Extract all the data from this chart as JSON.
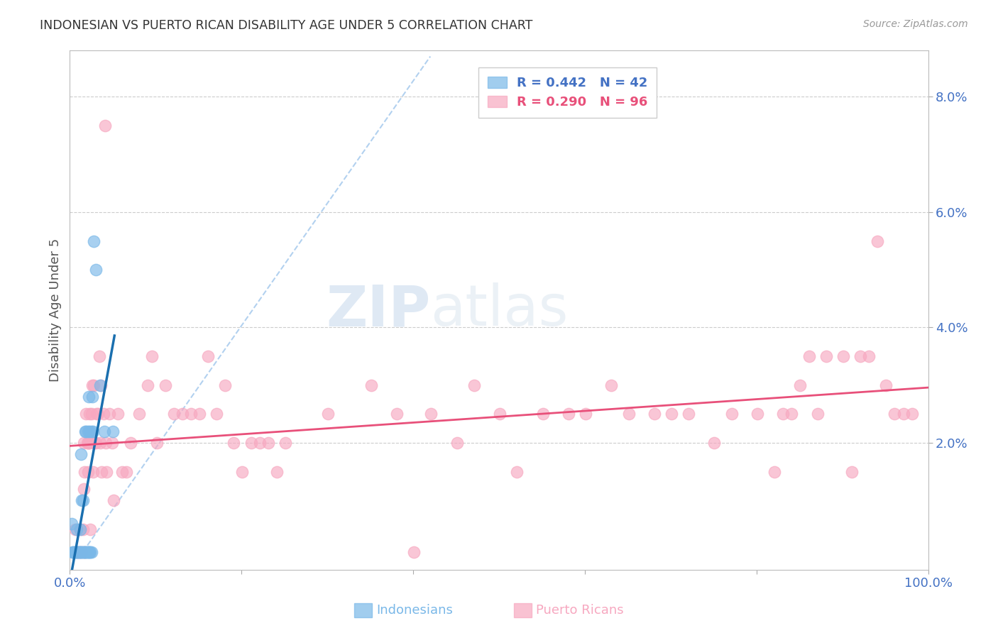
{
  "title": "INDONESIAN VS PUERTO RICAN DISABILITY AGE UNDER 5 CORRELATION CHART",
  "source": "Source: ZipAtlas.com",
  "ylabel": "Disability Age Under 5",
  "xlim": [
    0.0,
    1.0
  ],
  "ylim": [
    -0.002,
    0.088
  ],
  "y_ticks": [
    0.02,
    0.04,
    0.06,
    0.08
  ],
  "y_tick_labels": [
    "2.0%",
    "4.0%",
    "6.0%",
    "8.0%"
  ],
  "x_ticks": [
    0.0,
    1.0
  ],
  "x_tick_labels": [
    "0.0%",
    "100.0%"
  ],
  "legend_bottom": [
    "Indonesians",
    "Puerto Ricans"
  ],
  "legend_bottom_colors": [
    "#7ab8e8",
    "#f7a8c0"
  ],
  "background_color": "#ffffff",
  "grid_color": "#cccccc",
  "title_color": "#333333",
  "axis_label_color": "#4472c4",
  "indonesian_color": "#7ab8e8",
  "puerto_rican_color": "#f7a8c0",
  "indonesian_line_color": "#1a6faf",
  "puerto_rican_line_color": "#e8507a",
  "dashed_line_color": "#aaccee",
  "indonesian_points": [
    [
      0.002,
      0.006
    ],
    [
      0.003,
      0.001
    ],
    [
      0.004,
      0.001
    ],
    [
      0.005,
      0.001
    ],
    [
      0.006,
      0.001
    ],
    [
      0.007,
      0.001
    ],
    [
      0.008,
      0.001
    ],
    [
      0.008,
      0.005
    ],
    [
      0.009,
      0.001
    ],
    [
      0.01,
      0.001
    ],
    [
      0.011,
      0.001
    ],
    [
      0.012,
      0.001
    ],
    [
      0.012,
      0.005
    ],
    [
      0.013,
      0.001
    ],
    [
      0.013,
      0.018
    ],
    [
      0.014,
      0.001
    ],
    [
      0.014,
      0.01
    ],
    [
      0.015,
      0.001
    ],
    [
      0.015,
      0.01
    ],
    [
      0.016,
      0.001
    ],
    [
      0.017,
      0.001
    ],
    [
      0.018,
      0.001
    ],
    [
      0.018,
      0.022
    ],
    [
      0.019,
      0.001
    ],
    [
      0.019,
      0.022
    ],
    [
      0.02,
      0.001
    ],
    [
      0.021,
      0.001
    ],
    [
      0.021,
      0.022
    ],
    [
      0.022,
      0.001
    ],
    [
      0.022,
      0.028
    ],
    [
      0.023,
      0.001
    ],
    [
      0.023,
      0.022
    ],
    [
      0.024,
      0.001
    ],
    [
      0.025,
      0.001
    ],
    [
      0.025,
      0.022
    ],
    [
      0.026,
      0.028
    ],
    [
      0.027,
      0.022
    ],
    [
      0.028,
      0.055
    ],
    [
      0.03,
      0.05
    ],
    [
      0.035,
      0.03
    ],
    [
      0.04,
      0.022
    ],
    [
      0.05,
      0.022
    ]
  ],
  "puerto_rican_points": [
    [
      0.006,
      0.005
    ],
    [
      0.009,
      0.001
    ],
    [
      0.01,
      0.001
    ],
    [
      0.012,
      0.005
    ],
    [
      0.014,
      0.001
    ],
    [
      0.015,
      0.005
    ],
    [
      0.016,
      0.012
    ],
    [
      0.016,
      0.02
    ],
    [
      0.017,
      0.015
    ],
    [
      0.018,
      0.001
    ],
    [
      0.019,
      0.025
    ],
    [
      0.02,
      0.02
    ],
    [
      0.021,
      0.015
    ],
    [
      0.021,
      0.02
    ],
    [
      0.022,
      0.02
    ],
    [
      0.023,
      0.025
    ],
    [
      0.023,
      0.02
    ],
    [
      0.024,
      0.005
    ],
    [
      0.025,
      0.025
    ],
    [
      0.026,
      0.03
    ],
    [
      0.027,
      0.015
    ],
    [
      0.028,
      0.03
    ],
    [
      0.029,
      0.02
    ],
    [
      0.03,
      0.02
    ],
    [
      0.031,
      0.025
    ],
    [
      0.033,
      0.025
    ],
    [
      0.034,
      0.035
    ],
    [
      0.035,
      0.02
    ],
    [
      0.036,
      0.03
    ],
    [
      0.037,
      0.015
    ],
    [
      0.039,
      0.025
    ],
    [
      0.041,
      0.075
    ],
    [
      0.042,
      0.02
    ],
    [
      0.043,
      0.015
    ],
    [
      0.046,
      0.025
    ],
    [
      0.049,
      0.02
    ],
    [
      0.051,
      0.01
    ],
    [
      0.056,
      0.025
    ],
    [
      0.061,
      0.015
    ],
    [
      0.066,
      0.015
    ],
    [
      0.071,
      0.02
    ],
    [
      0.081,
      0.025
    ],
    [
      0.091,
      0.03
    ],
    [
      0.096,
      0.035
    ],
    [
      0.101,
      0.02
    ],
    [
      0.111,
      0.03
    ],
    [
      0.121,
      0.025
    ],
    [
      0.131,
      0.025
    ],
    [
      0.141,
      0.025
    ],
    [
      0.151,
      0.025
    ],
    [
      0.161,
      0.035
    ],
    [
      0.171,
      0.025
    ],
    [
      0.181,
      0.03
    ],
    [
      0.191,
      0.02
    ],
    [
      0.201,
      0.015
    ],
    [
      0.211,
      0.02
    ],
    [
      0.221,
      0.02
    ],
    [
      0.231,
      0.02
    ],
    [
      0.241,
      0.015
    ],
    [
      0.251,
      0.02
    ],
    [
      0.301,
      0.025
    ],
    [
      0.351,
      0.03
    ],
    [
      0.381,
      0.025
    ],
    [
      0.401,
      0.001
    ],
    [
      0.421,
      0.025
    ],
    [
      0.451,
      0.02
    ],
    [
      0.471,
      0.03
    ],
    [
      0.501,
      0.025
    ],
    [
      0.521,
      0.015
    ],
    [
      0.551,
      0.025
    ],
    [
      0.581,
      0.025
    ],
    [
      0.601,
      0.025
    ],
    [
      0.631,
      0.03
    ],
    [
      0.651,
      0.025
    ],
    [
      0.681,
      0.025
    ],
    [
      0.701,
      0.025
    ],
    [
      0.721,
      0.025
    ],
    [
      0.751,
      0.02
    ],
    [
      0.771,
      0.025
    ],
    [
      0.801,
      0.025
    ],
    [
      0.821,
      0.015
    ],
    [
      0.831,
      0.025
    ],
    [
      0.841,
      0.025
    ],
    [
      0.851,
      0.03
    ],
    [
      0.861,
      0.035
    ],
    [
      0.871,
      0.025
    ],
    [
      0.881,
      0.035
    ],
    [
      0.901,
      0.035
    ],
    [
      0.911,
      0.015
    ],
    [
      0.921,
      0.035
    ],
    [
      0.931,
      0.035
    ],
    [
      0.941,
      0.055
    ],
    [
      0.951,
      0.03
    ],
    [
      0.961,
      0.025
    ],
    [
      0.971,
      0.025
    ],
    [
      0.981,
      0.025
    ]
  ],
  "watermark_text": "ZIPatlas",
  "watermark_color": "#c8ddf0",
  "r_indo": "R = 0.442",
  "n_indo": "N = 42",
  "r_pr": "R = 0.290",
  "n_pr": "N = 96"
}
